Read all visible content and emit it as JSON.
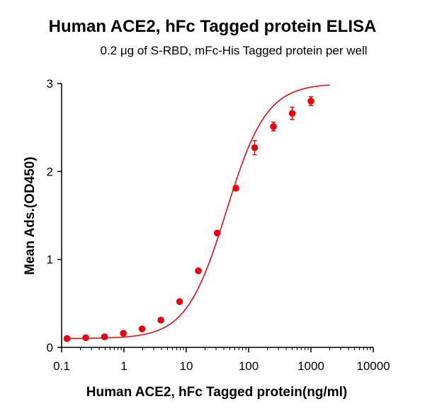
{
  "chart_data": {
    "type": "scatter",
    "title": "Human ACE2, hFc Tagged protein ELISA",
    "subtitle": "0.2 μg of S-RBD, mFc-His Tagged protein per well",
    "xlabel": "Human ACE2, hFc Tagged protein(ng/ml)",
    "ylabel": "Mean Ads.(OD450)",
    "x_scale": "log",
    "xlim": [
      0.1,
      10000
    ],
    "ylim": [
      0,
      3
    ],
    "x_ticks": [
      0.1,
      1,
      10,
      100,
      1000,
      10000
    ],
    "x_tick_labels": [
      "0.1",
      "1",
      "10",
      "100",
      "1000",
      "10000"
    ],
    "y_ticks": [
      0,
      1,
      2,
      3
    ],
    "y_tick_labels": [
      "0",
      "1",
      "2",
      "3"
    ],
    "grid": false,
    "color": "#e8000b",
    "series": [
      {
        "x": [
          0.122,
          0.244,
          0.488,
          0.977,
          1.95,
          3.91,
          7.81,
          15.6,
          31.3,
          62.5,
          125,
          250,
          500,
          1000
        ],
        "y": [
          0.1,
          0.11,
          0.12,
          0.16,
          0.21,
          0.31,
          0.52,
          0.87,
          1.3,
          1.81,
          2.27,
          2.51,
          2.66,
          2.8
        ],
        "error": [
          0.01,
          0.01,
          0.01,
          0.01,
          0.01,
          0.01,
          0.02,
          0.02,
          0.02,
          0.02,
          0.08,
          0.05,
          0.07,
          0.05
        ]
      }
    ],
    "fit_curve": {
      "model": "4PL",
      "bottom": 0.1,
      "top": 3.0,
      "ec50": 44,
      "hill": 1.35,
      "x_range": [
        0.122,
        2000
      ]
    }
  }
}
